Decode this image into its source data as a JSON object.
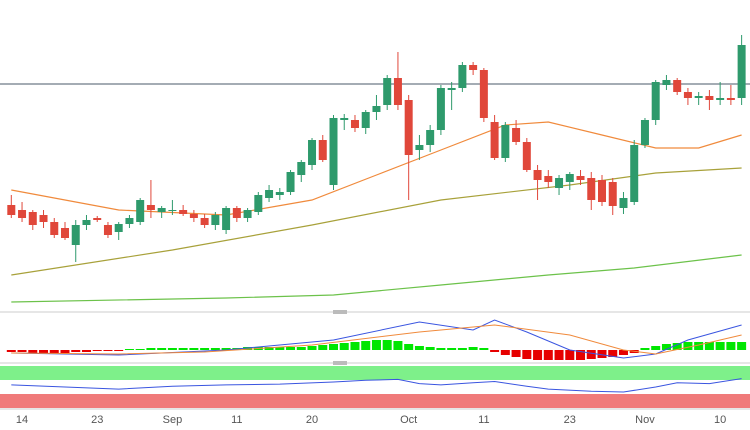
{
  "chart_data": {
    "type": "candlestick",
    "categories": [
      null,
      "14",
      null,
      null,
      null,
      null,
      null,
      null,
      "23",
      null,
      null,
      null,
      null,
      null,
      null,
      "Sep",
      null,
      null,
      null,
      null,
      null,
      "11",
      null,
      null,
      null,
      null,
      null,
      null,
      "20",
      null,
      null,
      null,
      null,
      null,
      null,
      null,
      null,
      "Oct",
      null,
      null,
      null,
      null,
      null,
      null,
      "11",
      null,
      null,
      null,
      null,
      null,
      null,
      null,
      "23",
      null,
      null,
      null,
      null,
      null,
      null,
      "Nov",
      null,
      null,
      null,
      null,
      null,
      null,
      "10",
      null,
      null
    ],
    "ohlc": [
      [
        105,
        115,
        92,
        95
      ],
      [
        100,
        108,
        88,
        92
      ],
      [
        98,
        100,
        80,
        85
      ],
      [
        95,
        100,
        82,
        88
      ],
      [
        88,
        92,
        72,
        75
      ],
      [
        82,
        88,
        70,
        72
      ],
      [
        65,
        90,
        48,
        85
      ],
      [
        85,
        95,
        80,
        90
      ],
      [
        92,
        94,
        88,
        90
      ],
      [
        85,
        88,
        72,
        75
      ],
      [
        78,
        88,
        70,
        86
      ],
      [
        86,
        95,
        82,
        92
      ],
      [
        88,
        112,
        85,
        110
      ],
      [
        105,
        130,
        92,
        100
      ],
      [
        98,
        104,
        92,
        102
      ],
      [
        100,
        110,
        95,
        100
      ],
      [
        100,
        105,
        94,
        96
      ],
      [
        96,
        100,
        88,
        92
      ],
      [
        92,
        96,
        82,
        85
      ],
      [
        85,
        98,
        80,
        95
      ],
      [
        80,
        104,
        76,
        102
      ],
      [
        102,
        104,
        88,
        92
      ],
      [
        92,
        102,
        88,
        100
      ],
      [
        98,
        118,
        95,
        115
      ],
      [
        112,
        125,
        108,
        120
      ],
      [
        115,
        122,
        110,
        118
      ],
      [
        118,
        140,
        115,
        138
      ],
      [
        135,
        150,
        128,
        148
      ],
      [
        145,
        172,
        140,
        170
      ],
      [
        170,
        175,
        148,
        150
      ],
      [
        125,
        195,
        120,
        192
      ],
      [
        190,
        196,
        180,
        192
      ],
      [
        190,
        195,
        178,
        182
      ],
      [
        182,
        200,
        176,
        198
      ],
      [
        198,
        215,
        190,
        204
      ],
      [
        205,
        235,
        200,
        232
      ],
      [
        232,
        258,
        200,
        205
      ],
      [
        210,
        215,
        110,
        155
      ],
      [
        160,
        175,
        150,
        165
      ],
      [
        165,
        185,
        158,
        180
      ],
      [
        180,
        225,
        175,
        222
      ],
      [
        220,
        228,
        200,
        222
      ],
      [
        222,
        248,
        218,
        245
      ],
      [
        245,
        248,
        235,
        240
      ],
      [
        240,
        242,
        188,
        192
      ],
      [
        188,
        195,
        150,
        152
      ],
      [
        152,
        188,
        148,
        185
      ],
      [
        182,
        190,
        165,
        168
      ],
      [
        168,
        172,
        138,
        140
      ],
      [
        140,
        145,
        110,
        130
      ],
      [
        134,
        140,
        122,
        128
      ],
      [
        122,
        135,
        115,
        132
      ],
      [
        128,
        138,
        120,
        136
      ],
      [
        134,
        140,
        125,
        130
      ],
      [
        132,
        138,
        100,
        110
      ],
      [
        130,
        135,
        104,
        108
      ],
      [
        128,
        132,
        95,
        104
      ],
      [
        102,
        118,
        96,
        112
      ],
      [
        108,
        170,
        105,
        165
      ],
      [
        165,
        192,
        162,
        190
      ],
      [
        190,
        230,
        185,
        228
      ],
      [
        225,
        235,
        220,
        230
      ],
      [
        230,
        232,
        215,
        218
      ],
      [
        218,
        222,
        205,
        212
      ],
      [
        212,
        218,
        205,
        214
      ],
      [
        214,
        220,
        200,
        210
      ],
      [
        210,
        228,
        205,
        212
      ],
      [
        212,
        225,
        205,
        210
      ],
      [
        212,
        275,
        205,
        265
      ]
    ],
    "up_color": "#2e9a6c",
    "down_color": "#e0473a",
    "ylim": [
      0,
      310
    ],
    "hline": 226,
    "ma_lines": [
      {
        "color": "#f08a3c",
        "x": [
          0,
          10,
          20,
          28,
          34,
          40,
          46,
          50,
          55,
          60,
          64,
          68
        ],
        "values": [
          120,
          100,
          95,
          110,
          135,
          160,
          185,
          188,
          175,
          162,
          162,
          175
        ]
      },
      {
        "color": "#a8a13a",
        "x": [
          0,
          15,
          28,
          40,
          52,
          60,
          68
        ],
        "values": [
          35,
          60,
          85,
          110,
          125,
          137,
          142
        ]
      },
      {
        "color": "#6cc24a",
        "x": [
          0,
          20,
          30,
          40,
          50,
          58,
          68
        ],
        "values": [
          8,
          12,
          15,
          25,
          35,
          42,
          55
        ]
      }
    ],
    "macd": {
      "ylim": [
        -12,
        35
      ],
      "pos_color": "#00e600",
      "neg_color": "#e60000",
      "histogram": [
        -2,
        -2,
        -3,
        -3,
        -3,
        -3,
        -2,
        -2,
        -1,
        -1,
        -1,
        1,
        1,
        2,
        2,
        2,
        2,
        2,
        2,
        2,
        2,
        2,
        3,
        3,
        3,
        3,
        3,
        3,
        4,
        5,
        6,
        7,
        8,
        9,
        10,
        10,
        9,
        6,
        4,
        3,
        2,
        2,
        2,
        3,
        2,
        -2,
        -5,
        -7,
        -9,
        -10,
        -10,
        -10,
        -10,
        -10,
        -9,
        -8,
        -7,
        -5,
        -3,
        2,
        4,
        6,
        7,
        8,
        8,
        8,
        8,
        8,
        8
      ],
      "lines": [
        {
          "color": "#3a55e0",
          "x": [
            0,
            10,
            20,
            30,
            38,
            43,
            45,
            48,
            52,
            57,
            60,
            63,
            68
          ],
          "values": [
            -3,
            -5,
            0,
            10,
            28,
            20,
            30,
            18,
            0,
            -8,
            -4,
            10,
            25
          ]
        },
        {
          "color": "#f08a3c",
          "x": [
            0,
            10,
            18,
            28,
            38,
            45,
            52,
            57,
            60,
            64,
            68
          ],
          "values": [
            -3,
            -4,
            -2,
            5,
            18,
            25,
            15,
            0,
            -4,
            5,
            15
          ]
        }
      ]
    },
    "rsi": {
      "ylim": [
        0,
        100
      ],
      "lines": [
        {
          "color": "#3a55e0",
          "x": [
            0,
            5,
            10,
            15,
            20,
            25,
            30,
            33,
            36,
            38,
            40,
            43,
            45,
            48,
            50,
            54,
            57,
            60,
            62,
            65,
            68
          ],
          "values": [
            55,
            50,
            45,
            52,
            55,
            57,
            62,
            66,
            68,
            58,
            55,
            60,
            63,
            52,
            45,
            40,
            38,
            50,
            60,
            58,
            70
          ]
        }
      ]
    }
  }
}
